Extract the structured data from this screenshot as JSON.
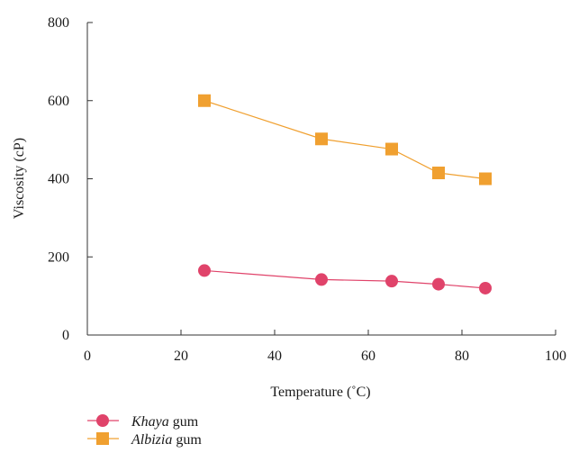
{
  "chart_data": {
    "type": "line",
    "xlabel": "Temperature (˚C)",
    "ylabel": "Viscosity (cP)",
    "xlim": [
      0,
      100
    ],
    "ylim": [
      0,
      800
    ],
    "xticks": [
      0,
      20,
      40,
      60,
      80,
      100
    ],
    "yticks": [
      0,
      200,
      400,
      600,
      800
    ],
    "grid": false,
    "legend_position": "bottom-left",
    "x": [
      25,
      50,
      65,
      75,
      85
    ],
    "series": [
      {
        "name_italic": "Khaya",
        "name_rest": " gum",
        "marker": "circle",
        "color": "#e0436a",
        "values": [
          165,
          142,
          138,
          130,
          120
        ]
      },
      {
        "name_italic": "Albizia",
        "name_rest": " gum",
        "marker": "square",
        "color": "#f0a030",
        "values": [
          600,
          502,
          476,
          415,
          400
        ]
      }
    ]
  }
}
